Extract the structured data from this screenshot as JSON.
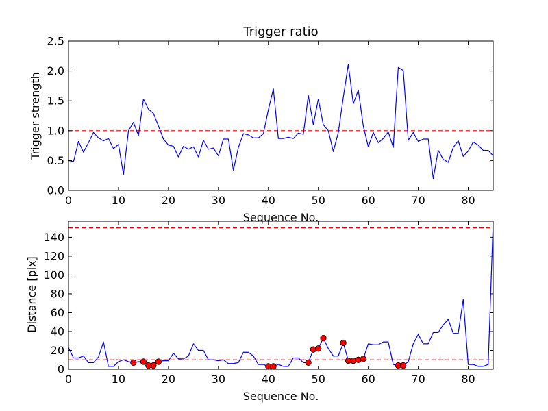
{
  "chart_data": [
    {
      "type": "line",
      "title": "Trigger ratio",
      "xlabel": "Sequence No.",
      "ylabel": "Trigger strength",
      "xlim": [
        0,
        85
      ],
      "ylim": [
        0.0,
        2.5
      ],
      "xticks": [
        0,
        10,
        20,
        30,
        40,
        50,
        60,
        70,
        80
      ],
      "xtick_labels": [
        "0",
        "10",
        "20",
        "30",
        "40",
        "50",
        "60",
        "70",
        "80"
      ],
      "yticks": [
        0.0,
        0.5,
        1.0,
        1.5,
        2.0,
        2.5
      ],
      "ytick_labels": [
        "0.0",
        "0.5",
        "1.0",
        "1.5",
        "2.0",
        "2.5"
      ],
      "grid": false,
      "series": [
        {
          "name": "trigger strength",
          "color": "#0000ff",
          "x": [
            0,
            1,
            2,
            3,
            4,
            5,
            6,
            7,
            8,
            9,
            10,
            11,
            12,
            13,
            14,
            15,
            16,
            17,
            18,
            19,
            20,
            21,
            22,
            23,
            24,
            25,
            26,
            27,
            28,
            29,
            30,
            31,
            32,
            33,
            34,
            35,
            36,
            37,
            38,
            39,
            40,
            41,
            42,
            43,
            44,
            45,
            46,
            47,
            48,
            49,
            50,
            51,
            52,
            53,
            54,
            55,
            56,
            57,
            58,
            59,
            60,
            61,
            62,
            63,
            64,
            65,
            66,
            67,
            68,
            69,
            70,
            71,
            72,
            73,
            74,
            75,
            76,
            77,
            78,
            79,
            80,
            81,
            82,
            83,
            84,
            85
          ],
          "values": [
            0.5,
            0.48,
            0.82,
            0.64,
            0.8,
            0.97,
            0.88,
            0.83,
            0.87,
            0.7,
            0.77,
            0.27,
            1.0,
            1.14,
            0.92,
            1.53,
            1.36,
            1.29,
            1.08,
            0.86,
            0.76,
            0.74,
            0.56,
            0.74,
            0.69,
            0.73,
            0.56,
            0.84,
            0.69,
            0.71,
            0.58,
            0.86,
            0.86,
            0.34,
            0.72,
            0.95,
            0.93,
            0.88,
            0.88,
            0.95,
            1.35,
            1.7,
            0.87,
            0.87,
            0.89,
            0.87,
            0.96,
            0.94,
            1.59,
            1.1,
            1.53,
            1.1,
            1.0,
            0.65,
            0.97,
            1.56,
            2.11,
            1.45,
            1.68,
            1.08,
            0.73,
            0.97,
            0.8,
            0.87,
            0.98,
            0.72,
            2.06,
            2.01,
            0.84,
            0.97,
            0.82,
            0.86,
            0.86,
            0.2,
            0.67,
            0.52,
            0.47,
            0.72,
            0.83,
            0.57,
            0.66,
            0.81,
            0.76,
            0.67,
            0.67,
            0.58
          ]
        }
      ],
      "threshold_lines": [
        {
          "y": 1.0,
          "color": "#ff0000",
          "style": "dashed"
        }
      ]
    },
    {
      "type": "line",
      "title": "",
      "xlabel": "Sequence No.",
      "ylabel": "Distance [pix]",
      "xlim": [
        0,
        85
      ],
      "ylim": [
        0,
        157
      ],
      "xticks": [
        0,
        10,
        20,
        30,
        40,
        50,
        60,
        70,
        80
      ],
      "xtick_labels": [
        "0",
        "10",
        "20",
        "30",
        "40",
        "50",
        "60",
        "70",
        "80"
      ],
      "yticks": [
        0,
        20,
        40,
        60,
        80,
        100,
        120,
        140
      ],
      "ytick_labels": [
        "0",
        "20",
        "40",
        "60",
        "80",
        "100",
        "120",
        "140"
      ],
      "grid": false,
      "series": [
        {
          "name": "distance",
          "color": "#0000ff",
          "x": [
            0,
            1,
            2,
            3,
            4,
            5,
            6,
            7,
            8,
            9,
            10,
            11,
            12,
            13,
            14,
            15,
            16,
            17,
            18,
            19,
            20,
            21,
            22,
            23,
            24,
            25,
            26,
            27,
            28,
            29,
            30,
            31,
            32,
            33,
            34,
            35,
            36,
            37,
            38,
            39,
            40,
            41,
            42,
            43,
            44,
            45,
            46,
            47,
            48,
            49,
            50,
            51,
            52,
            53,
            54,
            55,
            56,
            57,
            58,
            59,
            60,
            61,
            62,
            63,
            64,
            65,
            66,
            67,
            68,
            69,
            70,
            71,
            72,
            73,
            74,
            75,
            76,
            77,
            78,
            79,
            80,
            81,
            82,
            83,
            84,
            85
          ],
          "values": [
            23,
            12,
            12,
            14,
            7,
            7,
            13,
            29,
            3,
            3,
            8,
            10,
            8,
            7,
            8,
            8,
            4,
            4,
            8,
            9,
            9,
            17,
            11,
            11,
            14,
            27,
            20,
            20,
            10,
            10,
            9,
            10,
            6,
            6,
            7,
            18,
            18,
            14,
            5,
            5,
            3,
            3,
            5,
            3,
            3,
            12,
            12,
            7,
            7,
            21,
            22,
            33,
            22,
            14,
            14,
            28,
            9,
            9,
            10,
            11,
            27,
            26,
            26,
            29,
            29,
            5,
            4,
            4,
            8,
            27,
            37,
            27,
            27,
            39,
            39,
            47,
            53,
            38,
            38,
            74,
            5,
            5,
            3,
            3,
            5,
            157
          ]
        },
        {
          "name": "flagged",
          "color": "#ff0000",
          "marker": "circle",
          "x": [
            13,
            15,
            16,
            17,
            18,
            40,
            41,
            48,
            49,
            50,
            51,
            55,
            56,
            57,
            58,
            59,
            66,
            67
          ],
          "values": [
            7,
            8,
            4,
            4,
            8,
            3,
            3,
            7,
            21,
            22,
            33,
            28,
            9,
            9,
            10,
            11,
            4,
            4
          ]
        }
      ],
      "threshold_lines": [
        {
          "y": 10,
          "color": "#ff0000",
          "style": "dashed"
        },
        {
          "y": 150,
          "color": "#ff0000",
          "style": "dashed"
        }
      ]
    }
  ]
}
